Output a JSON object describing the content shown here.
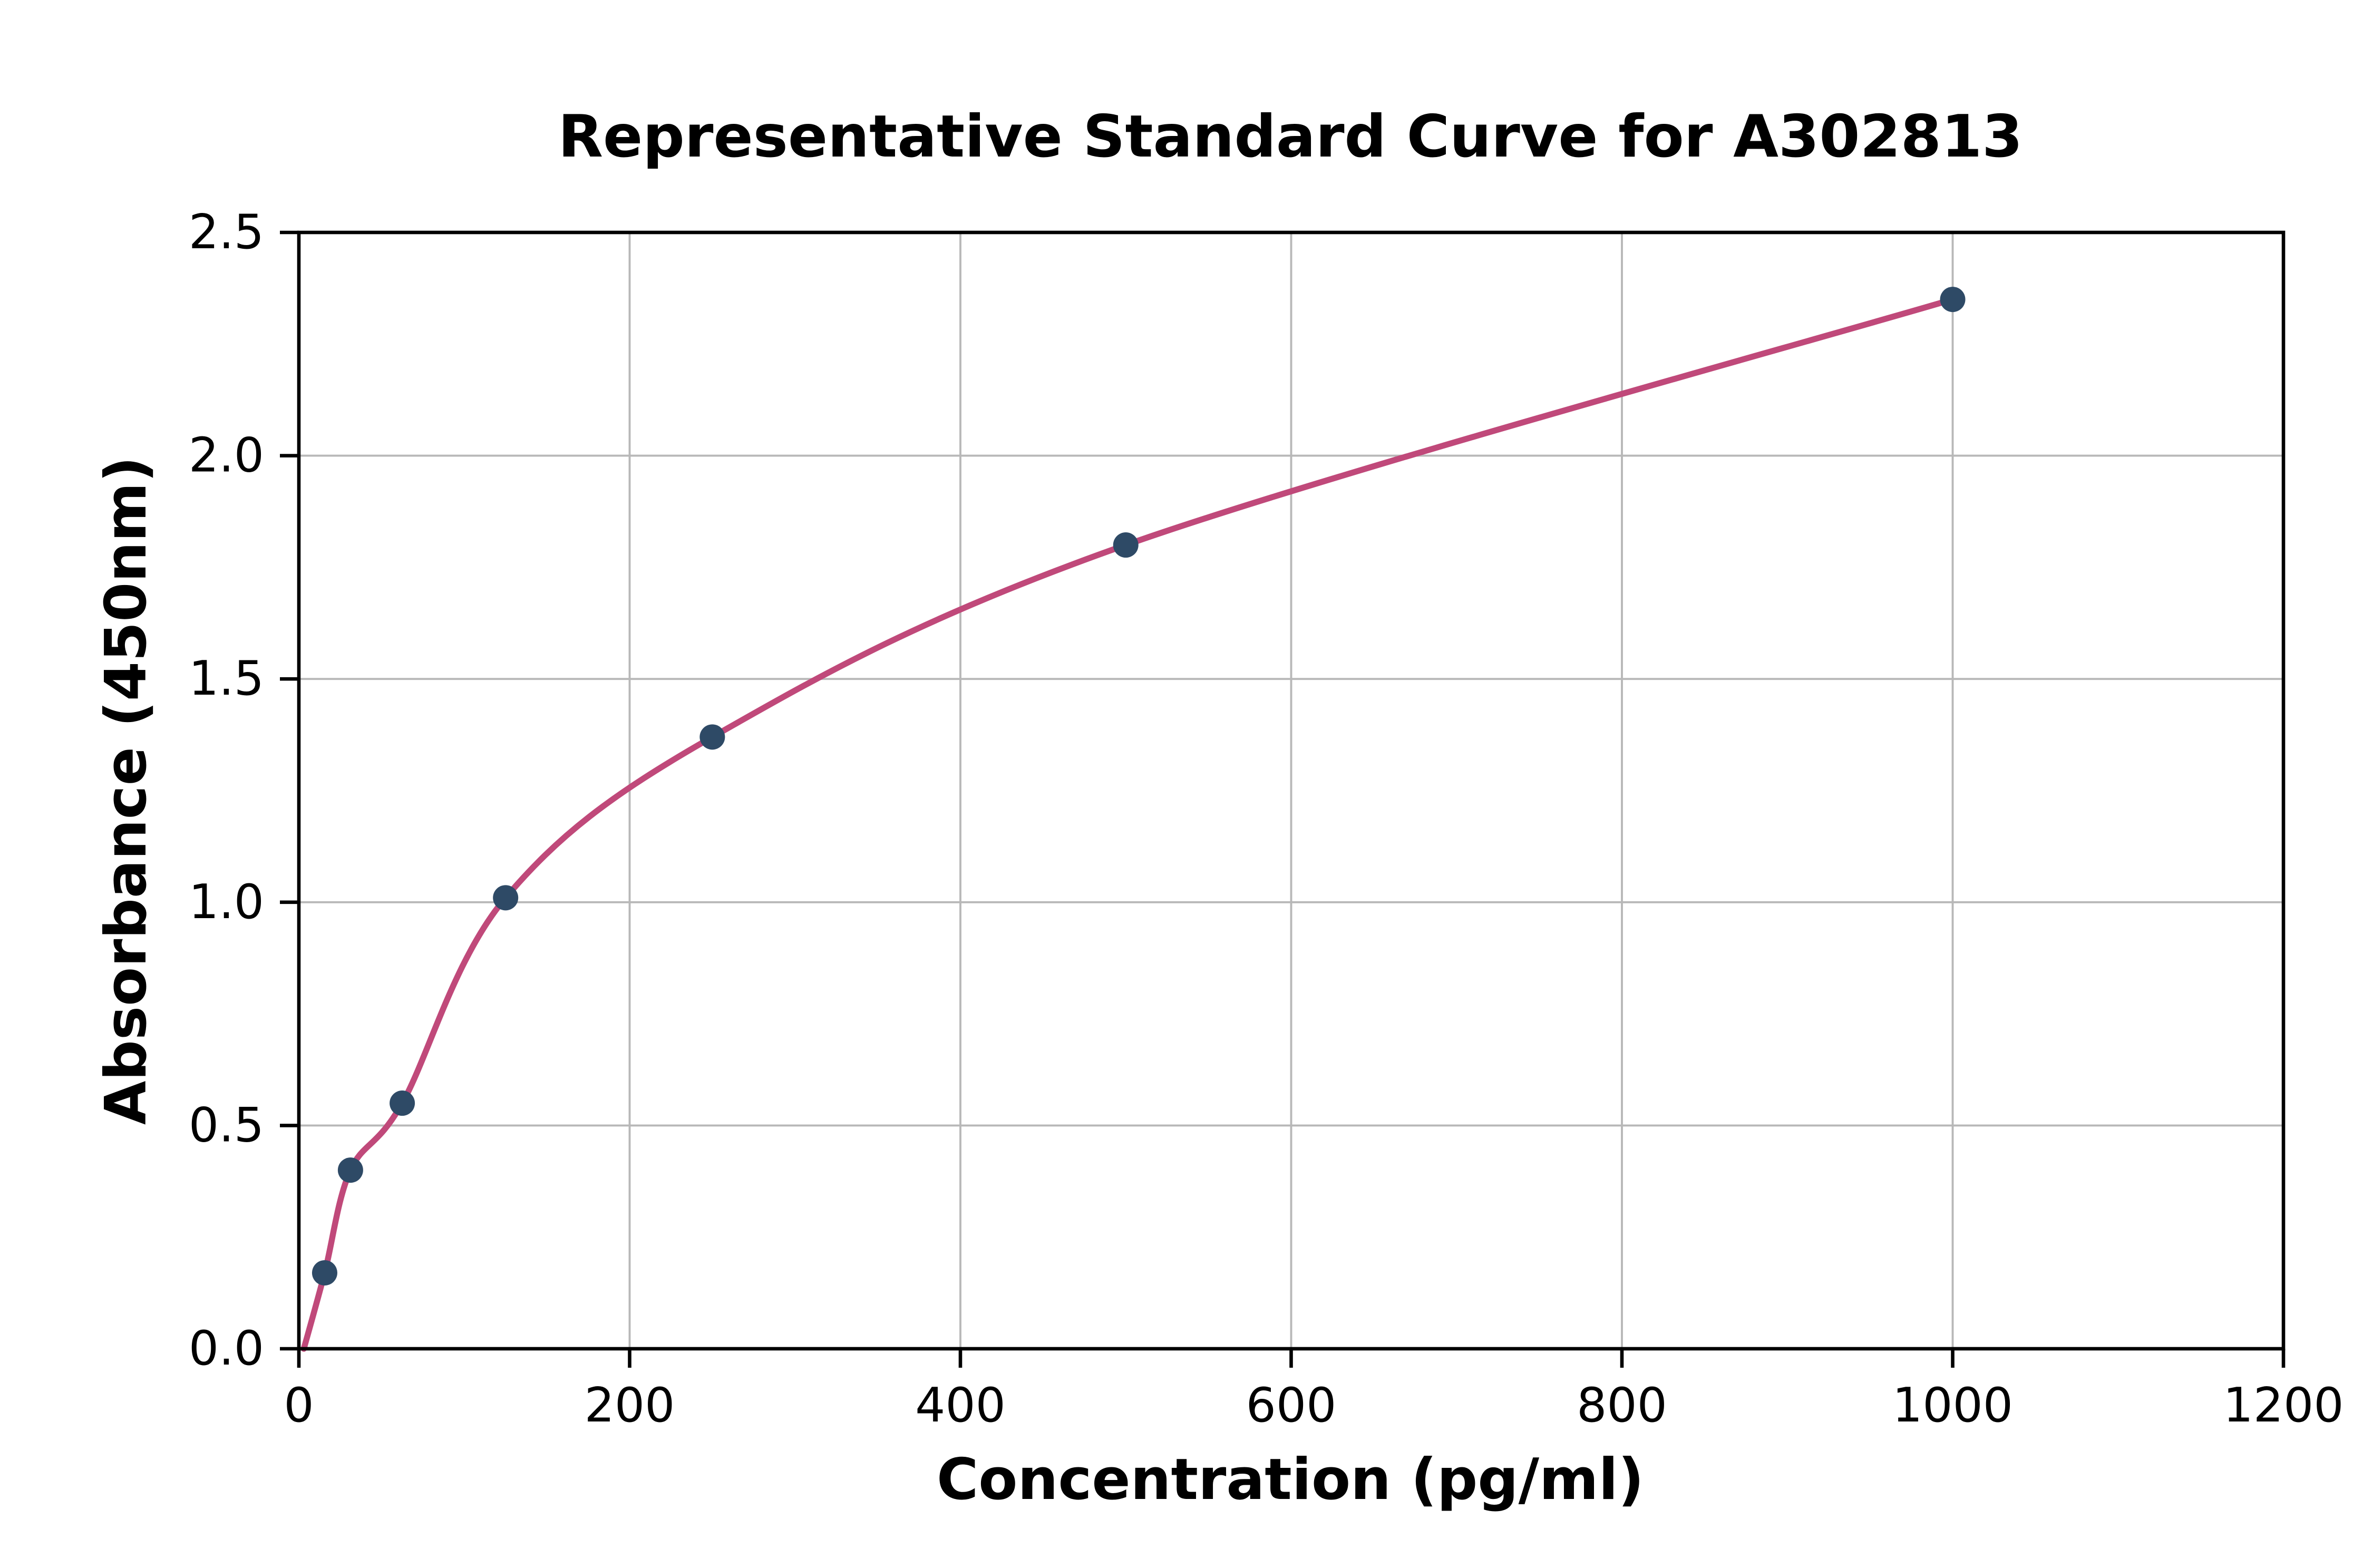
{
  "chart_data": {
    "type": "scatter",
    "title": "Representative Standard Curve for A302813",
    "xlabel": "Concentration (pg/ml)",
    "ylabel": "Absorbance (450nm)",
    "xlim": [
      0,
      1200
    ],
    "ylim": [
      0,
      2.5
    ],
    "x_tick_labels": [
      "0",
      "200",
      "400",
      "600",
      "800",
      "1000",
      "1200"
    ],
    "y_tick_labels": [
      "0.0",
      "0.5",
      "1.0",
      "1.5",
      "2.0",
      "2.5"
    ],
    "grid": true,
    "legend": "none",
    "points": [
      {
        "x": 15.6,
        "y": 0.17
      },
      {
        "x": 31.2,
        "y": 0.4
      },
      {
        "x": 62.5,
        "y": 0.55
      },
      {
        "x": 125,
        "y": 1.01
      },
      {
        "x": 250,
        "y": 1.37
      },
      {
        "x": 500,
        "y": 1.8
      },
      {
        "x": 1000,
        "y": 2.35
      }
    ],
    "fit_curve": {
      "present": true,
      "start": {
        "x": 3,
        "y": 0.0
      }
    },
    "colors": {
      "point": "#2e4a66",
      "curve": "#c0497a",
      "grid": "#b8b8b8",
      "axis": "#000000",
      "background": "#ffffff"
    }
  }
}
